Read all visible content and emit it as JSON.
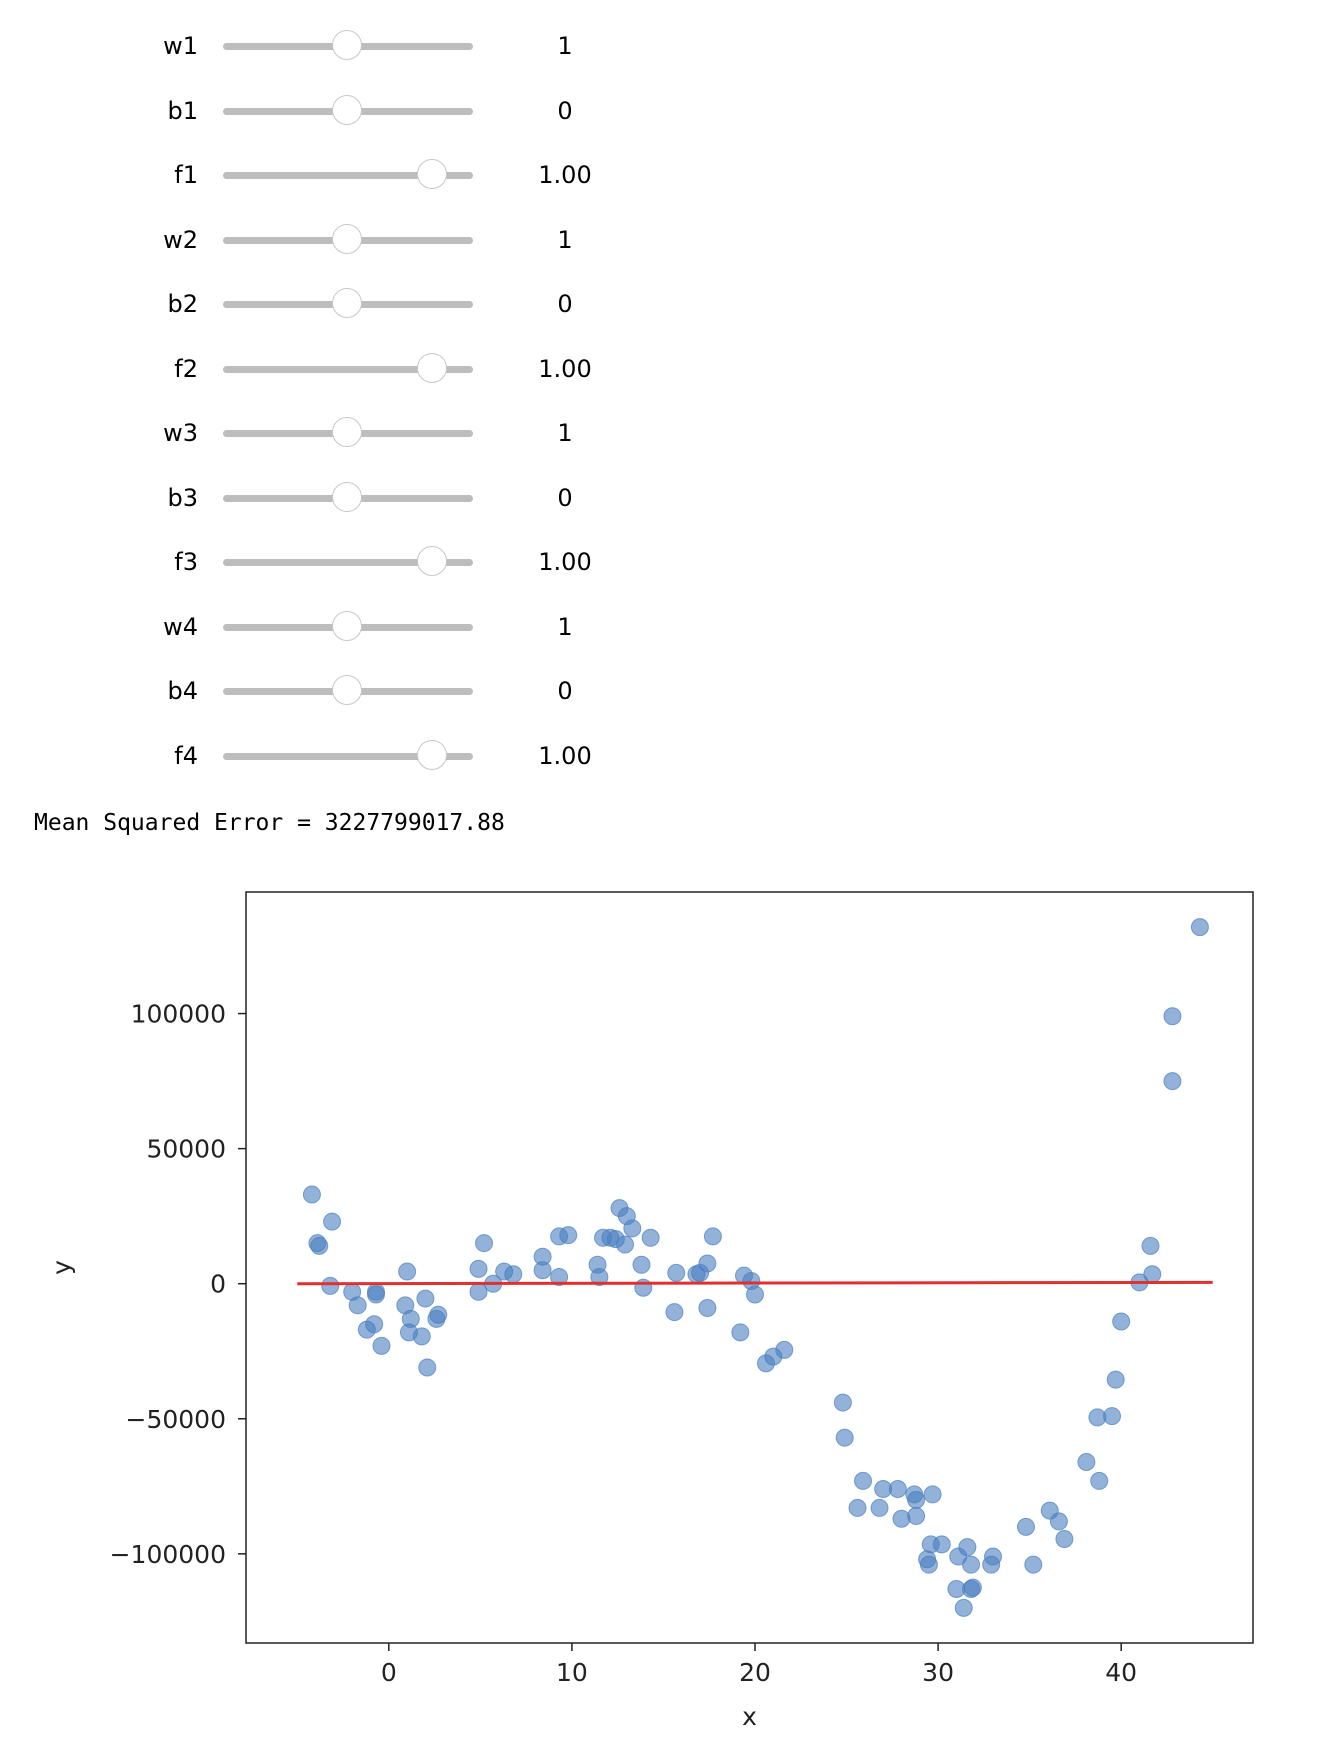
{
  "sliders": [
    {
      "label": "w1",
      "value": "1",
      "fraction": 0.5
    },
    {
      "label": "b1",
      "value": "0",
      "fraction": 0.5
    },
    {
      "label": "f1",
      "value": "1.00",
      "fraction": 0.84
    },
    {
      "label": "w2",
      "value": "1",
      "fraction": 0.5
    },
    {
      "label": "b2",
      "value": "0",
      "fraction": 0.5
    },
    {
      "label": "f2",
      "value": "1.00",
      "fraction": 0.84
    },
    {
      "label": "w3",
      "value": "1",
      "fraction": 0.5
    },
    {
      "label": "b3",
      "value": "0",
      "fraction": 0.5
    },
    {
      "label": "f3",
      "value": "1.00",
      "fraction": 0.84
    },
    {
      "label": "w4",
      "value": "1",
      "fraction": 0.5
    },
    {
      "label": "b4",
      "value": "0",
      "fraction": 0.5
    },
    {
      "label": "f4",
      "value": "1.00",
      "fraction": 0.84
    }
  ],
  "output": {
    "mse_text": "Mean Squared Error = 3227799017.88"
  },
  "chart_data": {
    "type": "scatter",
    "xlabel": "x",
    "ylabel": "y",
    "xlim": [
      -7.8,
      47.2
    ],
    "ylim": [
      -133000,
      145000
    ],
    "xticks": [
      0,
      10,
      20,
      30,
      40
    ],
    "yticks": [
      100000,
      50000,
      0,
      -50000,
      -100000
    ],
    "ytick_labels": [
      "100000",
      "50000",
      "0",
      "−50000",
      "−100000"
    ],
    "grid": false,
    "point_color": "#4a7fbf",
    "line_color": "#e03030",
    "line": {
      "x": [
        -5,
        45
      ],
      "y": [
        0,
        500
      ]
    },
    "points": [
      [
        -4.2,
        33000
      ],
      [
        -3.9,
        15000
      ],
      [
        -3.8,
        14000
      ],
      [
        -3.1,
        23000
      ],
      [
        -3.2,
        -800
      ],
      [
        -2.0,
        -3000
      ],
      [
        -1.7,
        -8000
      ],
      [
        -1.2,
        -17000
      ],
      [
        -0.8,
        -15000
      ],
      [
        -0.7,
        -3000
      ],
      [
        -0.7,
        -4000
      ],
      [
        -0.4,
        -23000
      ],
      [
        0.9,
        -8000
      ],
      [
        1.0,
        4500
      ],
      [
        1.1,
        -18000
      ],
      [
        1.2,
        -13000
      ],
      [
        1.8,
        -19500
      ],
      [
        2.0,
        -5500
      ],
      [
        2.1,
        -31000
      ],
      [
        2.6,
        -13000
      ],
      [
        2.7,
        -11500
      ],
      [
        4.9,
        5500
      ],
      [
        4.9,
        -3000
      ],
      [
        5.2,
        15000
      ],
      [
        5.7,
        0
      ],
      [
        6.3,
        4500
      ],
      [
        6.8,
        3500
      ],
      [
        8.4,
        10000
      ],
      [
        8.4,
        5000
      ],
      [
        9.3,
        2500
      ],
      [
        9.3,
        17500
      ],
      [
        9.8,
        18000
      ],
      [
        11.4,
        7000
      ],
      [
        11.5,
        2500
      ],
      [
        11.7,
        17000
      ],
      [
        12.1,
        17000
      ],
      [
        12.4,
        16500
      ],
      [
        12.6,
        28000
      ],
      [
        12.9,
        14500
      ],
      [
        13.0,
        25000
      ],
      [
        13.3,
        20500
      ],
      [
        13.8,
        7000
      ],
      [
        13.9,
        -1500
      ],
      [
        14.3,
        17000
      ],
      [
        15.6,
        -10500
      ],
      [
        15.7,
        4000
      ],
      [
        16.8,
        3500
      ],
      [
        17.0,
        4000
      ],
      [
        17.4,
        7500
      ],
      [
        17.4,
        -9000
      ],
      [
        17.7,
        17500
      ],
      [
        19.2,
        -18000
      ],
      [
        19.4,
        3000
      ],
      [
        19.8,
        1000
      ],
      [
        20.0,
        -4000
      ],
      [
        20.6,
        -29500
      ],
      [
        21.0,
        -27000
      ],
      [
        21.6,
        -24500
      ],
      [
        24.8,
        -44000
      ],
      [
        24.9,
        -57000
      ],
      [
        25.6,
        -83000
      ],
      [
        25.9,
        -73000
      ],
      [
        26.8,
        -83000
      ],
      [
        27.0,
        -76000
      ],
      [
        27.8,
        -76000
      ],
      [
        28.0,
        -87000
      ],
      [
        28.7,
        -78000
      ],
      [
        28.8,
        -80000
      ],
      [
        28.8,
        -86000
      ],
      [
        29.4,
        -102000
      ],
      [
        29.5,
        -104000
      ],
      [
        29.6,
        -96500
      ],
      [
        29.7,
        -78000
      ],
      [
        30.2,
        -96500
      ],
      [
        31.0,
        -113000
      ],
      [
        31.1,
        -101000
      ],
      [
        31.4,
        -120000
      ],
      [
        31.6,
        -97500
      ],
      [
        31.8,
        -104000
      ],
      [
        31.8,
        -113000
      ],
      [
        31.9,
        -112500
      ],
      [
        32.9,
        -104000
      ],
      [
        33.0,
        -101000
      ],
      [
        34.8,
        -90000
      ],
      [
        35.2,
        -104000
      ],
      [
        36.1,
        -84000
      ],
      [
        36.6,
        -88000
      ],
      [
        36.9,
        -94500
      ],
      [
        38.1,
        -66000
      ],
      [
        38.7,
        -49500
      ],
      [
        38.8,
        -73000
      ],
      [
        39.5,
        -49000
      ],
      [
        39.7,
        -35500
      ],
      [
        40.0,
        -14000
      ],
      [
        41.0,
        500
      ],
      [
        41.6,
        14000
      ],
      [
        41.7,
        3500
      ],
      [
        42.8,
        75000
      ],
      [
        42.8,
        99000
      ],
      [
        44.3,
        132000
      ]
    ]
  }
}
